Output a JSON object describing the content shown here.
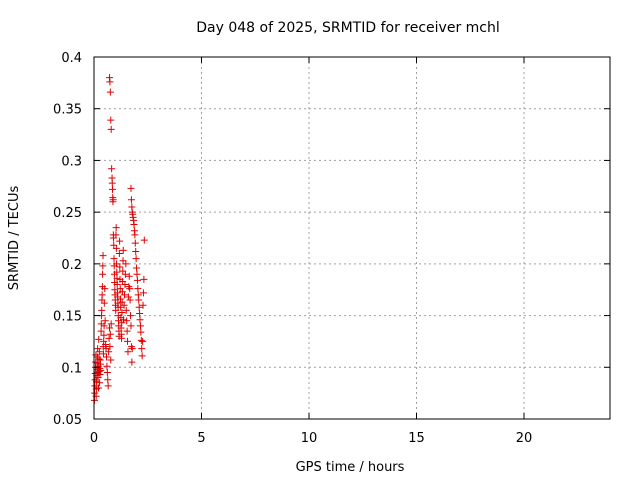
{
  "chart_data": {
    "type": "scatter",
    "title": "Day 048 of 2025, SRMTID for receiver mchl",
    "xlabel": "GPS time / hours",
    "ylabel": "SRMTID / TECUs",
    "xlim": [
      0,
      24
    ],
    "ylim": [
      0.05,
      0.4
    ],
    "xticks": [
      0,
      5,
      10,
      15,
      20
    ],
    "xtick_labels": [
      "0",
      "5",
      "10",
      "15",
      "20"
    ],
    "yticks": [
      0.05,
      0.1,
      0.15,
      0.2,
      0.25,
      0.3,
      0.35,
      0.4
    ],
    "ytick_labels": [
      "0.05",
      "0.1",
      "0.15",
      "0.2",
      "0.25",
      "0.3",
      "0.35",
      "0.4"
    ],
    "grid": true,
    "marker": "plus",
    "colors": {
      "points": "#e00000",
      "grid": "#a0a0a0",
      "frame": "#000000"
    },
    "series": [
      {
        "points": [
          [
            0.02,
            0.068
          ],
          [
            0.03,
            0.075
          ],
          [
            0.04,
            0.082
          ],
          [
            0.05,
            0.088
          ],
          [
            0.06,
            0.094
          ],
          [
            0.07,
            0.1
          ],
          [
            0.08,
            0.105
          ],
          [
            0.09,
            0.112
          ],
          [
            0.1,
            0.072
          ],
          [
            0.11,
            0.079
          ],
          [
            0.12,
            0.086
          ],
          [
            0.13,
            0.092
          ],
          [
            0.14,
            0.098
          ],
          [
            0.15,
            0.104
          ],
          [
            0.16,
            0.11
          ],
          [
            0.17,
            0.118
          ],
          [
            0.18,
            0.095
          ],
          [
            0.19,
            0.09
          ],
          [
            0.2,
            0.101
          ],
          [
            0.21,
            0.08
          ],
          [
            0.22,
            0.127
          ],
          [
            0.23,
            0.108
          ],
          [
            0.24,
            0.096
          ],
          [
            0.25,
            0.115
          ],
          [
            0.26,
            0.085
          ],
          [
            0.27,
            0.099
          ],
          [
            0.28,
            0.093
          ],
          [
            0.29,
            0.107
          ],
          [
            0.3,
            0.103
          ],
          [
            0.31,
            0.097
          ],
          [
            0.33,
            0.135
          ],
          [
            0.34,
            0.142
          ],
          [
            0.35,
            0.15
          ],
          [
            0.36,
            0.155
          ],
          [
            0.37,
            0.165
          ],
          [
            0.38,
            0.17
          ],
          [
            0.39,
            0.178
          ],
          [
            0.4,
            0.19
          ],
          [
            0.41,
            0.198
          ],
          [
            0.42,
            0.208
          ],
          [
            0.43,
            0.12
          ],
          [
            0.44,
            0.113
          ],
          [
            0.45,
            0.125
          ],
          [
            0.46,
            0.131
          ],
          [
            0.47,
            0.14
          ],
          [
            0.48,
            0.162
          ],
          [
            0.5,
            0.176
          ],
          [
            0.52,
            0.145
          ],
          [
            0.54,
            0.122
          ],
          [
            0.56,
            0.118
          ],
          [
            0.58,
            0.11
          ],
          [
            0.6,
            0.101
          ],
          [
            0.62,
            0.095
          ],
          [
            0.64,
            0.088
          ],
          [
            0.66,
            0.082
          ],
          [
            0.68,
            0.115
          ],
          [
            0.7,
            0.128
          ],
          [
            0.72,
            0.138
          ],
          [
            0.74,
            0.12
          ],
          [
            0.76,
            0.132
          ],
          [
            0.78,
            0.107
          ],
          [
            0.8,
            0.142
          ],
          [
            0.72,
            0.38
          ],
          [
            0.74,
            0.376
          ],
          [
            0.76,
            0.366
          ],
          [
            0.78,
            0.339
          ],
          [
            0.8,
            0.33
          ],
          [
            0.82,
            0.292
          ],
          [
            0.84,
            0.283
          ],
          [
            0.85,
            0.278
          ],
          [
            0.86,
            0.272
          ],
          [
            0.87,
            0.264
          ],
          [
            0.88,
            0.26
          ],
          [
            0.89,
            0.262
          ],
          [
            0.9,
            0.228
          ],
          [
            0.91,
            0.225
          ],
          [
            0.92,
            0.218
          ],
          [
            0.93,
            0.205
          ],
          [
            0.94,
            0.198
          ],
          [
            0.95,
            0.19
          ],
          [
            0.96,
            0.182
          ],
          [
            0.97,
            0.175
          ],
          [
            0.98,
            0.17
          ],
          [
            0.99,
            0.165
          ],
          [
            1.0,
            0.16
          ],
          [
            1.01,
            0.155
          ],
          [
            1.02,
            0.228
          ],
          [
            1.03,
            0.235
          ],
          [
            1.04,
            0.215
          ],
          [
            1.05,
            0.2
          ],
          [
            1.06,
            0.192
          ],
          [
            1.07,
            0.186
          ],
          [
            1.08,
            0.18
          ],
          [
            1.09,
            0.172
          ],
          [
            1.1,
            0.168
          ],
          [
            1.11,
            0.162
          ],
          [
            1.12,
            0.158
          ],
          [
            1.13,
            0.15
          ],
          [
            1.14,
            0.145
          ],
          [
            1.15,
            0.14
          ],
          [
            1.16,
            0.135
          ],
          [
            1.17,
            0.13
          ],
          [
            1.18,
            0.21
          ],
          [
            1.19,
            0.222
          ],
          [
            1.2,
            0.197
          ],
          [
            1.21,
            0.185
          ],
          [
            1.22,
            0.176
          ],
          [
            1.23,
            0.166
          ],
          [
            1.24,
            0.158
          ],
          [
            1.25,
            0.148
          ],
          [
            1.26,
            0.138
          ],
          [
            1.27,
            0.132
          ],
          [
            1.28,
            0.128
          ],
          [
            1.29,
            0.143
          ],
          [
            1.3,
            0.153
          ],
          [
            1.31,
            0.163
          ],
          [
            1.32,
            0.173
          ],
          [
            1.33,
            0.183
          ],
          [
            1.34,
            0.193
          ],
          [
            1.35,
            0.203
          ],
          [
            1.36,
            0.213
          ],
          [
            1.37,
            0.146
          ],
          [
            1.4,
            0.16
          ],
          [
            1.42,
            0.17
          ],
          [
            1.44,
            0.18
          ],
          [
            1.46,
            0.19
          ],
          [
            1.48,
            0.2
          ],
          [
            1.5,
            0.155
          ],
          [
            1.52,
            0.145
          ],
          [
            1.54,
            0.135
          ],
          [
            1.56,
            0.125
          ],
          [
            1.58,
            0.115
          ],
          [
            1.6,
            0.168
          ],
          [
            1.62,
            0.178
          ],
          [
            1.64,
            0.188
          ],
          [
            1.66,
            0.176
          ],
          [
            1.68,
            0.165
          ],
          [
            1.7,
            0.15
          ],
          [
            1.72,
            0.14
          ],
          [
            1.74,
            0.12
          ],
          [
            1.76,
            0.105
          ],
          [
            1.78,
            0.118
          ],
          [
            1.72,
            0.273
          ],
          [
            1.74,
            0.262
          ],
          [
            1.76,
            0.255
          ],
          [
            1.78,
            0.25
          ],
          [
            1.8,
            0.248
          ],
          [
            1.82,
            0.245
          ],
          [
            1.84,
            0.242
          ],
          [
            1.86,
            0.238
          ],
          [
            1.88,
            0.232
          ],
          [
            1.9,
            0.228
          ],
          [
            1.92,
            0.22
          ],
          [
            1.94,
            0.212
          ],
          [
            1.96,
            0.205
          ],
          [
            1.98,
            0.196
          ],
          [
            2.0,
            0.19
          ],
          [
            2.02,
            0.184
          ],
          [
            2.04,
            0.176
          ],
          [
            2.06,
            0.17
          ],
          [
            2.08,
            0.165
          ],
          [
            2.1,
            0.158
          ],
          [
            2.12,
            0.152
          ],
          [
            2.14,
            0.146
          ],
          [
            2.16,
            0.14
          ],
          [
            2.18,
            0.134
          ],
          [
            2.2,
            0.126
          ],
          [
            2.22,
            0.118
          ],
          [
            2.24,
            0.111
          ],
          [
            2.26,
            0.125
          ],
          [
            2.28,
            0.16
          ],
          [
            2.3,
            0.172
          ],
          [
            2.32,
            0.185
          ],
          [
            2.34,
            0.223
          ]
        ]
      }
    ]
  }
}
